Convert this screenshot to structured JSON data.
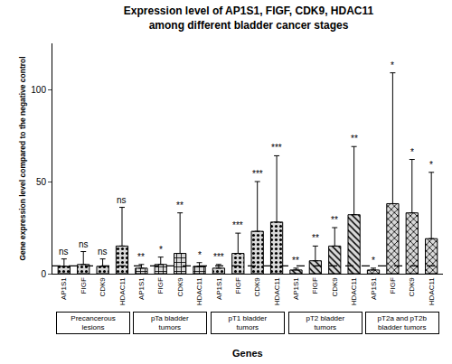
{
  "chart_data": {
    "type": "bar",
    "title": "Expression level of AP1S1, FIGF, CDK9, HDAC11 among different bladder cancer stages",
    "title_lines": [
      "Expression level of AP1S1, FIGF, CDK9, HDAC11",
      "among different bladder cancer stages"
    ],
    "x_label": "Genes",
    "y_label": "Gene expression level compared to the negative control",
    "categories": [
      "AP1S1",
      "FIGF",
      "CDK9",
      "HDAC11",
      "AP1S1",
      "FIGF",
      "CDK9",
      "HDAC11",
      "AP1S1",
      "FIGF",
      "CDK9",
      "HDAC11",
      "AP1S1",
      "FIGF",
      "CDK9",
      "HDAC11",
      "AP1S1",
      "FIGF",
      "CDK9",
      "HDAC11"
    ],
    "series": [
      {
        "name": "Precancerous lesions",
        "color": "#d9d9d9",
        "marker": "dots",
        "values": [
          4,
          5,
          4,
          15,
          null,
          null,
          null,
          null,
          null,
          null,
          null,
          null,
          null,
          null,
          null,
          null,
          null,
          null,
          null,
          null
        ],
        "errors": [
          4,
          7,
          4,
          21,
          null,
          null,
          null,
          null,
          null,
          null,
          null,
          null,
          null,
          null,
          null,
          null,
          null,
          null,
          null,
          null
        ],
        "significance": [
          "ns",
          "ns",
          "ns",
          "ns",
          null,
          null,
          null,
          null,
          null,
          null,
          null,
          null,
          null,
          null,
          null,
          null,
          null,
          null,
          null,
          null
        ]
      },
      {
        "name": "pTa bladder tumors",
        "color": "#d9d9d9",
        "marker": "grid",
        "values": [
          null,
          null,
          null,
          null,
          3,
          5,
          11,
          4,
          null,
          null,
          null,
          null,
          null,
          null,
          null,
          null,
          null,
          null,
          null,
          null
        ],
        "errors": [
          null,
          null,
          null,
          null,
          2,
          4,
          22,
          2,
          null,
          null,
          null,
          null,
          null,
          null,
          null,
          null,
          null,
          null,
          null,
          null
        ],
        "significance": [
          null,
          null,
          null,
          null,
          "**",
          "*",
          "**",
          "*",
          null,
          null,
          null,
          null,
          null,
          null,
          null,
          null,
          null,
          null,
          null,
          null
        ]
      },
      {
        "name": "pT1 bladder tumors",
        "color": "#d9d9d9",
        "marker": "dots",
        "values": [
          null,
          null,
          null,
          null,
          null,
          null,
          null,
          null,
          3,
          11,
          23,
          28,
          null,
          null,
          null,
          null,
          null,
          null,
          null,
          null
        ],
        "errors": [
          null,
          null,
          null,
          null,
          null,
          null,
          null,
          null,
          2,
          11,
          27,
          36,
          null,
          null,
          null,
          null,
          null,
          null,
          null,
          null
        ],
        "significance": [
          null,
          null,
          null,
          null,
          null,
          null,
          null,
          null,
          "***",
          "***",
          "***",
          "***",
          null,
          null,
          null,
          null,
          null,
          null,
          null,
          null
        ]
      },
      {
        "name": "pT2 bladder tumors",
        "color": "#d9d9d9",
        "marker": "diagonal",
        "values": [
          null,
          null,
          null,
          null,
          null,
          null,
          null,
          null,
          null,
          null,
          null,
          null,
          2,
          7,
          15,
          32,
          null,
          null,
          null,
          null
        ],
        "errors": [
          null,
          null,
          null,
          null,
          null,
          null,
          null,
          null,
          null,
          null,
          null,
          null,
          1,
          8,
          10,
          37,
          null,
          null,
          null,
          null
        ],
        "significance": [
          null,
          null,
          null,
          null,
          null,
          null,
          null,
          null,
          null,
          null,
          null,
          null,
          "**",
          "**",
          "**",
          "**",
          null,
          null,
          null,
          null
        ]
      },
      {
        "name": "pT2a and pT2b bladder tumors",
        "color": "#d9d9d9",
        "marker": "crosshatch",
        "values": [
          null,
          null,
          null,
          null,
          null,
          null,
          null,
          null,
          null,
          null,
          null,
          null,
          null,
          null,
          null,
          null,
          2,
          38,
          33,
          19
        ],
        "errors": [
          null,
          null,
          null,
          null,
          null,
          null,
          null,
          null,
          null,
          null,
          null,
          null,
          null,
          null,
          null,
          null,
          1,
          71,
          29,
          36
        ],
        "significance": [
          null,
          null,
          null,
          null,
          null,
          null,
          null,
          null,
          null,
          null,
          null,
          null,
          null,
          null,
          null,
          null,
          "*",
          "*",
          "*",
          "*"
        ]
      }
    ],
    "reference_line": 4.2,
    "ylim": [
      0,
      125
    ],
    "yticks": [
      0,
      50,
      100
    ],
    "grid": false
  }
}
